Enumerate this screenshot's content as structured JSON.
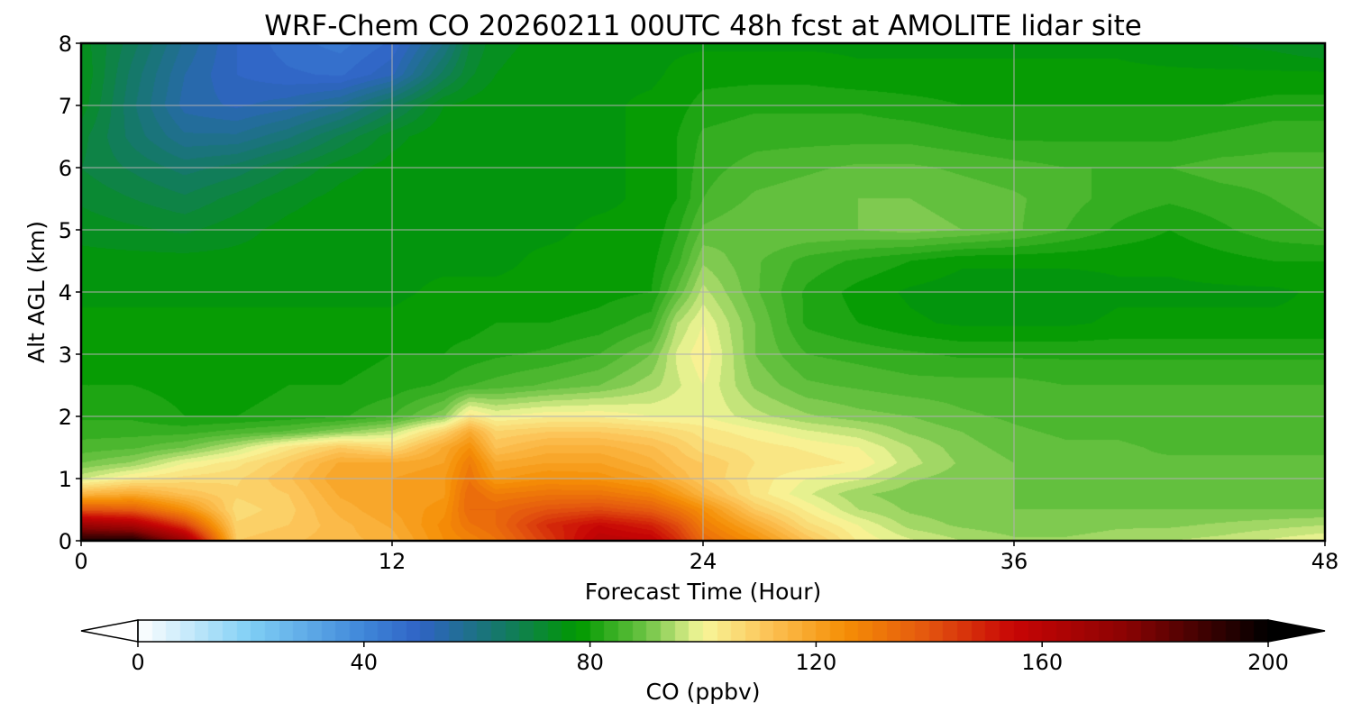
{
  "chart_data": {
    "type": "heatmap",
    "title": "WRF-Chem CO  20260211 00UTC 48h fcst at AMOLITE lidar site",
    "xlabel": "Forecast Time (Hour)",
    "ylabel": "Alt AGL (km)",
    "xlim": [
      0,
      48
    ],
    "ylim": [
      0,
      8
    ],
    "x_ticks": [
      "0",
      "12",
      "24",
      "36",
      "48"
    ],
    "y_ticks": [
      "0",
      "1",
      "2",
      "3",
      "4",
      "5",
      "6",
      "7",
      "8"
    ],
    "grid": true,
    "colorbar": {
      "label": "CO  (ppbv)",
      "range": [
        0,
        200
      ],
      "ticks": [
        "0",
        "40",
        "80",
        "120",
        "160",
        "200"
      ],
      "extend": "both",
      "orientation": "horizontal",
      "color_stops": [
        {
          "v": 0,
          "c": "#ffffff"
        },
        {
          "v": 20,
          "c": "#7fcff5"
        },
        {
          "v": 40,
          "c": "#3f86d9"
        },
        {
          "v": 50,
          "c": "#2f63c4"
        },
        {
          "v": 65,
          "c": "#137a62"
        },
        {
          "v": 78,
          "c": "#009900"
        },
        {
          "v": 90,
          "c": "#6ec445"
        },
        {
          "v": 100,
          "c": "#f7f79a"
        },
        {
          "v": 112,
          "c": "#fcc154"
        },
        {
          "v": 125,
          "c": "#f58f05"
        },
        {
          "v": 140,
          "c": "#e3550f"
        },
        {
          "v": 155,
          "c": "#c80505"
        },
        {
          "v": 175,
          "c": "#8a0303"
        },
        {
          "v": 200,
          "c": "#000000"
        }
      ]
    },
    "field": {
      "x_hours": [
        0,
        2,
        4,
        6,
        8,
        10,
        12,
        14,
        15,
        16,
        18,
        20,
        22,
        23,
        24,
        26,
        28,
        30,
        32,
        34,
        36,
        38,
        40,
        42,
        44,
        46,
        48
      ],
      "z_km": [
        0,
        0.25,
        0.5,
        0.75,
        1,
        1.25,
        1.5,
        1.75,
        2,
        2.5,
        3,
        3.5,
        4,
        4.5,
        5,
        5.5,
        6,
        6.5,
        7,
        7.5,
        8
      ],
      "co_ppbv": [
        [
          195,
          196,
          170,
          110,
          112,
          114,
          116,
          125,
          128,
          132,
          145,
          160,
          158,
          148,
          135,
          125,
          112,
          102,
          98,
          95,
          93,
          93,
          94,
          95,
          96,
          98,
          100
        ],
        [
          170,
          165,
          145,
          108,
          110,
          114,
          118,
          126,
          132,
          135,
          148,
          155,
          150,
          142,
          130,
          118,
          106,
          100,
          94,
          92,
          91,
          91,
          92,
          92,
          93,
          94,
          95
        ],
        [
          140,
          138,
          125,
          106,
          109,
          116,
          120,
          124,
          135,
          135,
          140,
          142,
          138,
          132,
          125,
          110,
          102,
          95,
          92,
          91,
          90,
          90,
          90,
          90,
          90,
          90,
          90
        ],
        [
          115,
          118,
          112,
          108,
          110,
          118,
          120,
          122,
          135,
          130,
          132,
          132,
          128,
          122,
          115,
          104,
          98,
          93,
          91,
          90,
          90,
          89,
          89,
          89,
          89,
          89,
          89
        ],
        [
          97,
          103,
          106,
          107,
          112,
          120,
          120,
          122,
          132,
          122,
          125,
          124,
          120,
          115,
          110,
          104,
          100,
          98,
          93,
          91,
          90,
          89,
          89,
          88,
          88,
          88,
          88
        ],
        [
          90,
          93,
          100,
          104,
          110,
          118,
          118,
          120,
          130,
          118,
          120,
          120,
          116,
          112,
          110,
          105,
          104,
          102,
          96,
          92,
          90,
          89,
          88,
          88,
          88,
          88,
          88
        ],
        [
          86,
          87,
          90,
          96,
          104,
          110,
          106,
          118,
          125,
          112,
          116,
          116,
          113,
          110,
          106,
          104,
          102,
          100,
          95,
          91,
          89,
          88,
          88,
          87,
          87,
          87,
          87
        ],
        [
          84,
          84,
          84,
          86,
          88,
          92,
          96,
          108,
          118,
          108,
          110,
          110,
          108,
          106,
          104,
          101,
          98,
          96,
          92,
          90,
          88,
          87,
          87,
          86,
          86,
          86,
          86
        ],
        [
          82,
          82,
          80,
          80,
          81,
          82,
          85,
          92,
          104,
          100,
          102,
          102,
          100,
          100,
          100,
          96,
          93,
          91,
          90,
          88,
          87,
          86,
          86,
          86,
          86,
          86,
          86
        ],
        [
          80,
          80,
          79,
          79,
          80,
          80,
          81,
          83,
          85,
          86,
          88,
          90,
          94,
          97,
          100,
          92,
          88,
          87,
          86,
          86,
          86,
          85,
          85,
          85,
          85,
          85,
          85
        ],
        [
          79,
          79,
          79,
          79,
          79,
          79,
          80,
          80,
          81,
          82,
          83,
          85,
          90,
          98,
          102,
          90,
          85,
          84,
          83,
          82,
          82,
          82,
          82,
          82,
          82,
          82,
          82
        ],
        [
          78,
          78,
          78,
          78,
          78,
          78,
          78,
          79,
          79,
          80,
          80,
          81,
          84,
          95,
          100,
          90,
          82,
          80,
          78,
          77,
          77,
          77,
          78,
          78,
          78,
          78,
          78
        ],
        [
          77,
          77,
          77,
          77,
          77,
          77,
          77,
          78,
          78,
          78,
          78,
          79,
          80,
          88,
          96,
          88,
          82,
          79,
          77,
          76,
          76,
          76,
          77,
          77,
          77,
          77,
          78
        ],
        [
          76,
          76,
          76,
          76,
          76,
          77,
          77,
          77,
          77,
          77,
          78,
          78,
          79,
          84,
          92,
          88,
          84,
          82,
          80,
          78,
          78,
          78,
          78,
          78,
          79,
          80,
          80
        ],
        [
          74,
          73,
          72,
          74,
          76,
          77,
          77,
          77,
          77,
          77,
          77,
          78,
          78,
          82,
          88,
          90,
          90,
          90,
          91,
          90,
          88,
          85,
          82,
          80,
          82,
          84,
          85
        ],
        [
          72,
          70,
          68,
          71,
          74,
          76,
          77,
          77,
          77,
          77,
          77,
          77,
          78,
          80,
          85,
          88,
          89,
          90,
          90,
          89,
          88,
          86,
          84,
          83,
          84,
          85,
          86
        ],
        [
          70,
          67,
          64,
          66,
          70,
          74,
          76,
          77,
          77,
          77,
          77,
          77,
          78,
          80,
          84,
          86,
          87,
          88,
          88,
          87,
          86,
          85,
          85,
          85,
          86,
          86,
          86
        ],
        [
          71,
          64,
          58,
          58,
          62,
          68,
          74,
          77,
          77,
          77,
          77,
          77,
          78,
          80,
          83,
          84,
          84,
          84,
          84,
          83,
          82,
          82,
          82,
          82,
          83,
          84,
          84
        ],
        [
          74,
          63,
          54,
          52,
          54,
          58,
          66,
          75,
          76,
          77,
          77,
          77,
          78,
          79,
          81,
          82,
          82,
          82,
          81,
          80,
          80,
          80,
          80,
          80,
          80,
          81,
          81
        ],
        [
          75,
          64,
          55,
          50,
          48,
          47,
          52,
          66,
          72,
          75,
          77,
          77,
          77,
          78,
          79,
          79,
          79,
          78,
          78,
          78,
          78,
          78,
          78,
          78,
          78,
          78,
          78
        ],
        [
          74,
          66,
          57,
          50,
          46,
          44,
          48,
          60,
          70,
          74,
          76,
          77,
          77,
          77,
          77,
          77,
          77,
          77,
          77,
          77,
          77,
          77,
          77,
          76,
          75,
          74,
          72
        ]
      ]
    }
  }
}
